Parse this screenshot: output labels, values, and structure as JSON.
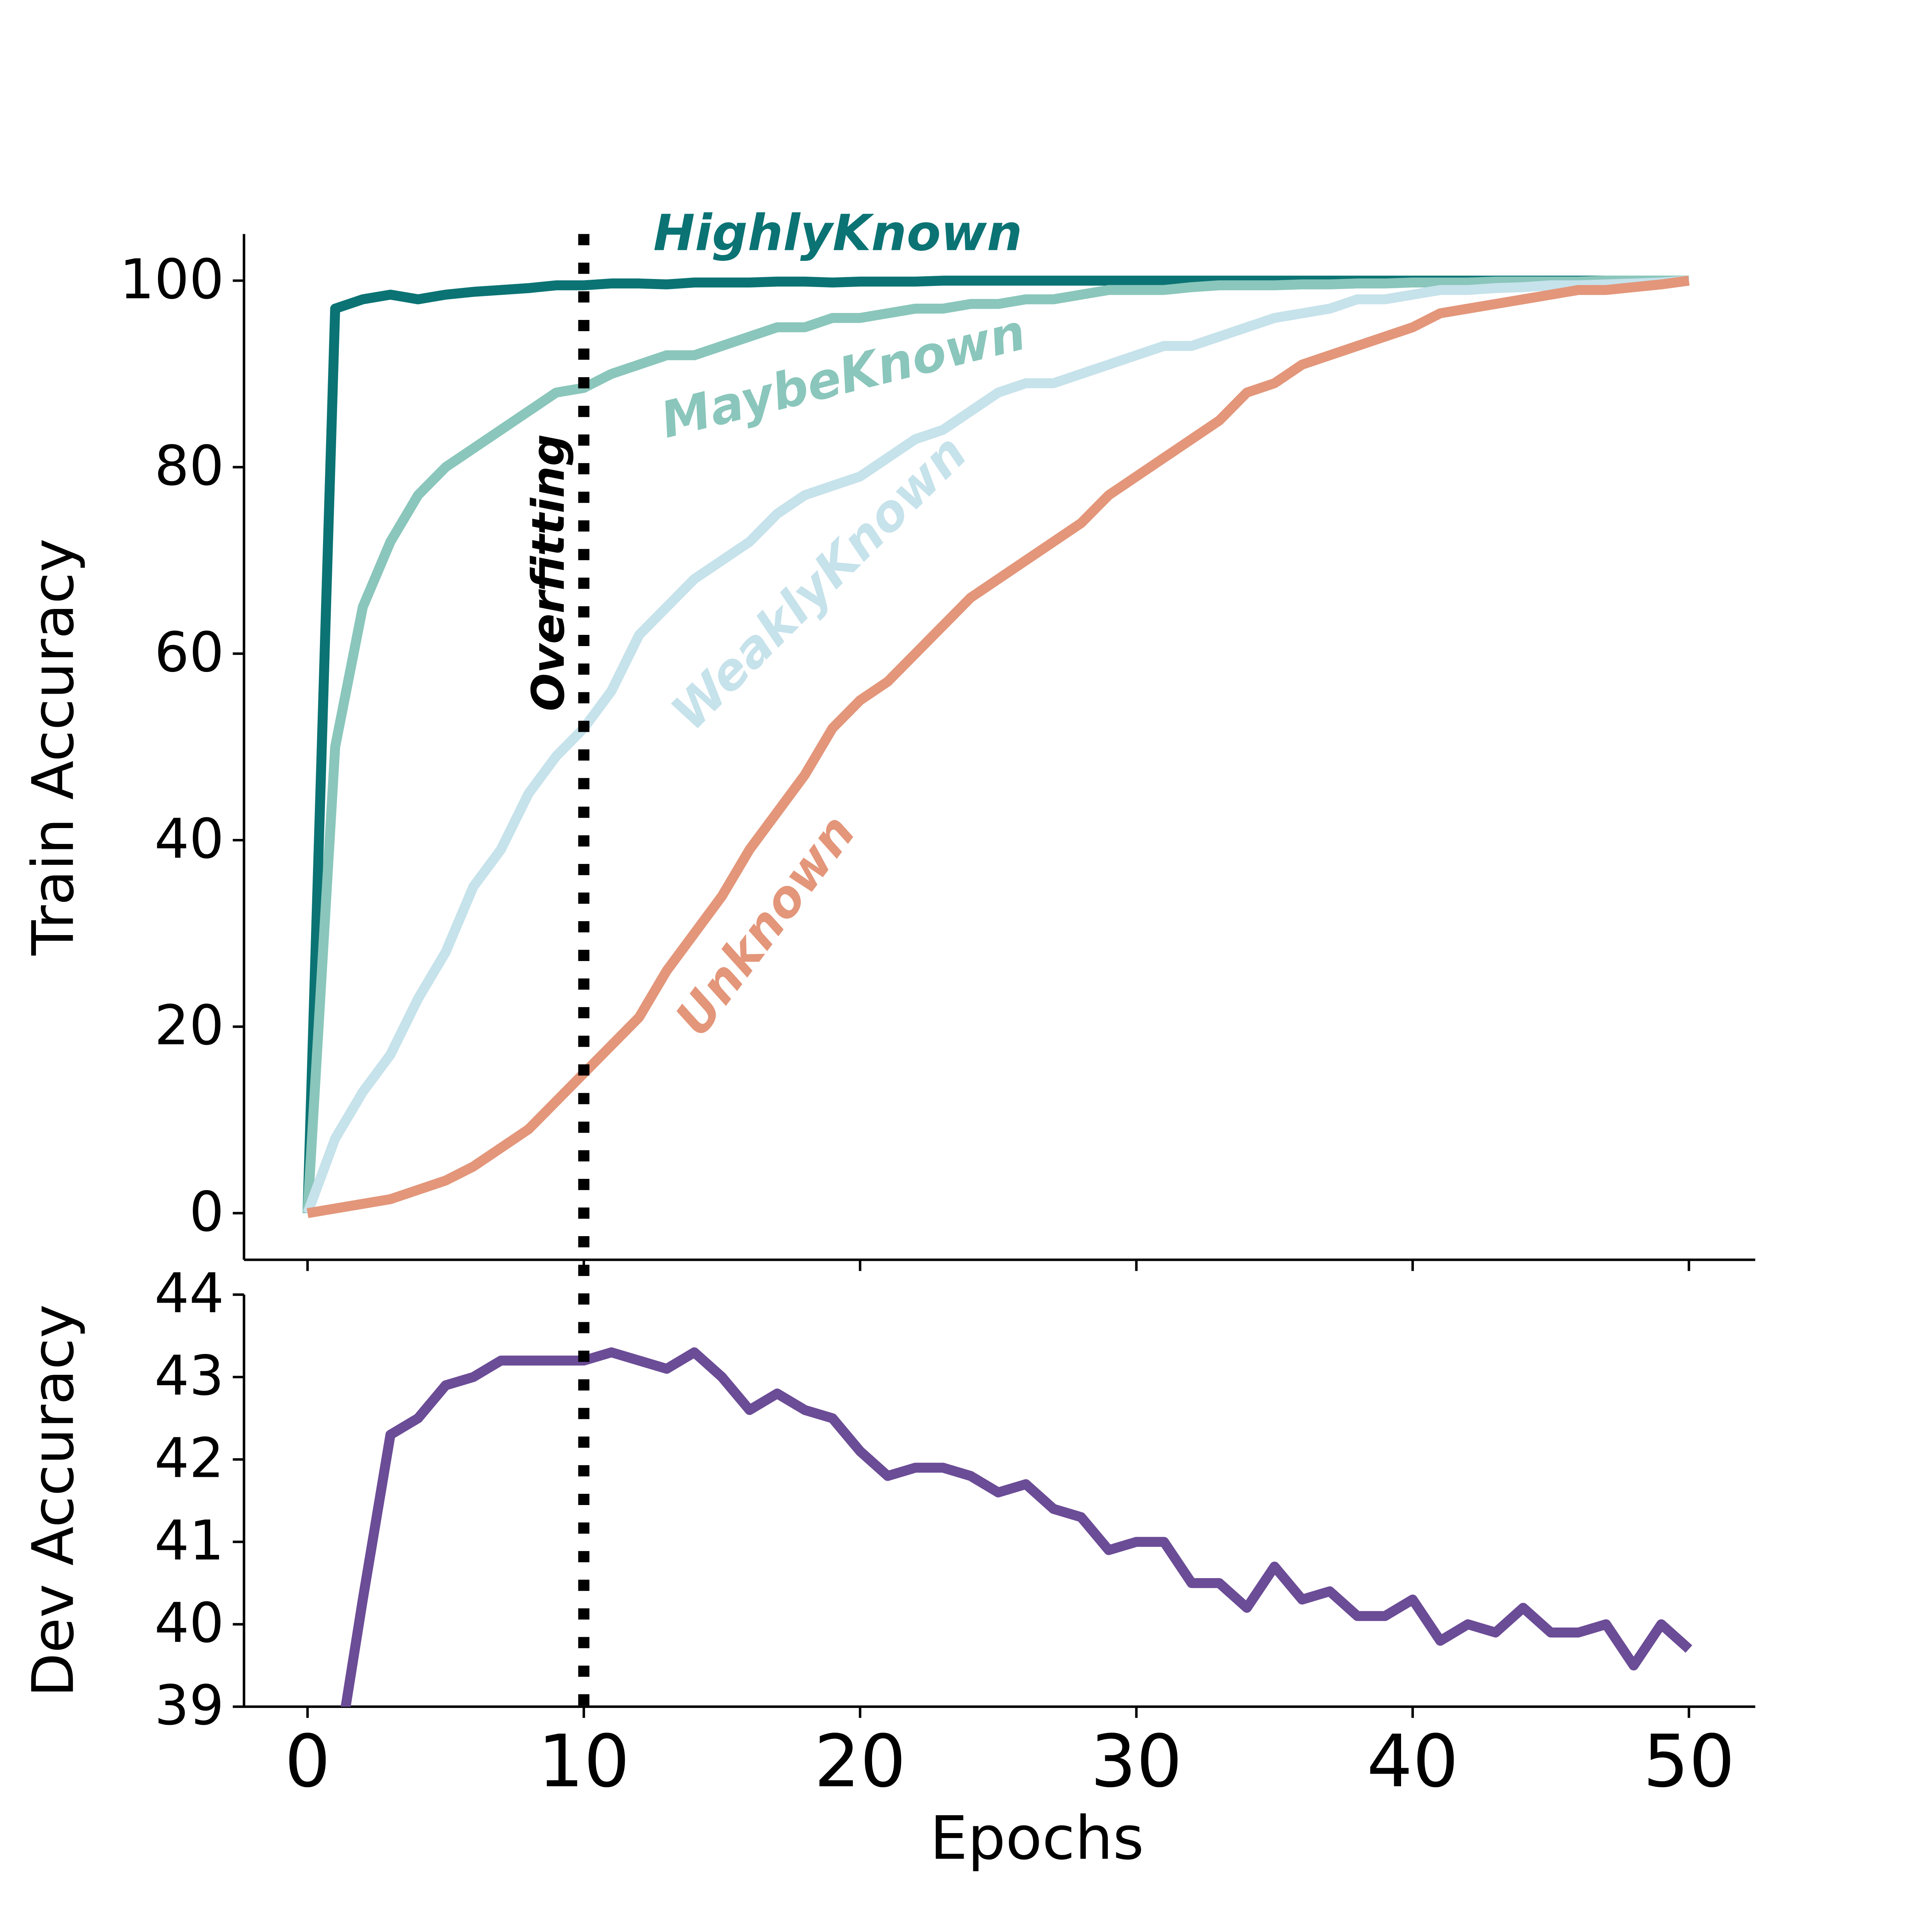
{
  "chart_data": [
    {
      "type": "line",
      "ylabel": "Train Accuracy",
      "x": [
        0,
        1,
        2,
        3,
        4,
        5,
        6,
        7,
        8,
        9,
        10,
        11,
        12,
        13,
        14,
        15,
        16,
        17,
        18,
        19,
        20,
        21,
        22,
        23,
        24,
        25,
        26,
        27,
        28,
        29,
        30,
        31,
        32,
        33,
        34,
        35,
        36,
        37,
        38,
        39,
        40,
        41,
        42,
        43,
        44,
        45,
        46,
        47,
        48,
        49,
        50
      ],
      "xlim": [
        -2.3,
        52.4
      ],
      "xticks": [
        0,
        10,
        20,
        30,
        40,
        50
      ],
      "ylim": [
        -5,
        105
      ],
      "yticks": [
        0,
        20,
        40,
        60,
        80,
        100
      ],
      "vline": {
        "x": 10,
        "label": "Overfitting"
      },
      "series": [
        {
          "name": "HighlyKnown",
          "color": "#0b7374",
          "values": [
            0,
            97,
            98,
            98.5,
            98,
            98.5,
            98.8,
            99,
            99.2,
            99.5,
            99.5,
            99.7,
            99.7,
            99.6,
            99.8,
            99.8,
            99.8,
            99.9,
            99.9,
            99.8,
            99.9,
            99.9,
            99.9,
            100,
            100,
            100,
            100,
            100,
            100,
            100,
            100,
            100,
            100,
            100,
            100,
            100,
            100,
            100,
            100,
            100,
            100,
            100,
            100,
            100,
            100,
            100,
            100,
            100,
            100,
            100,
            100
          ]
        },
        {
          "name": "MaybeKnown",
          "color": "#8ac6bb",
          "values": [
            0,
            50,
            65,
            72,
            77,
            80,
            82,
            84,
            86,
            88,
            88.5,
            90,
            91,
            92,
            92,
            93,
            94,
            95,
            95,
            96,
            96,
            96.5,
            97,
            97,
            97.5,
            97.5,
            98,
            98,
            98.5,
            99,
            99,
            99,
            99.3,
            99.5,
            99.5,
            99.5,
            99.6,
            99.6,
            99.7,
            99.7,
            99.8,
            99.8,
            99.8,
            99.9,
            99.9,
            99.9,
            99.9,
            100,
            100,
            100,
            100
          ]
        },
        {
          "name": "WeaklyKnown",
          "color": "#c6e2eb",
          "values": [
            0,
            8,
            13,
            17,
            23,
            28,
            35,
            39,
            45,
            49,
            52,
            56,
            62,
            65,
            68,
            70,
            72,
            75,
            77,
            78,
            79,
            81,
            83,
            84,
            86,
            88,
            89,
            89,
            90,
            91,
            92,
            93,
            93,
            94,
            95,
            96,
            96.5,
            97,
            98,
            98,
            98.5,
            99,
            99,
            99.2,
            99.3,
            99.5,
            99.5,
            99.6,
            99.7,
            99.8,
            100
          ]
        },
        {
          "name": "Unknown",
          "color": "#e3967a",
          "values": [
            0,
            0.5,
            1,
            1.5,
            2.5,
            3.5,
            5,
            7,
            9,
            12,
            15,
            18,
            21,
            26,
            30,
            34,
            39,
            43,
            47,
            52,
            55,
            57,
            60,
            63,
            66,
            68,
            70,
            72,
            74,
            77,
            79,
            81,
            83,
            85,
            88,
            89,
            91,
            92,
            93,
            94,
            95,
            96.5,
            97,
            97.5,
            98,
            98.5,
            99,
            99,
            99.3,
            99.6,
            100
          ]
        }
      ]
    },
    {
      "type": "line",
      "xlabel": "Epochs",
      "ylabel": "Dev Accuracy",
      "x": [
        0,
        1,
        2,
        3,
        4,
        5,
        6,
        7,
        8,
        9,
        10,
        11,
        12,
        13,
        14,
        15,
        16,
        17,
        18,
        19,
        20,
        21,
        22,
        23,
        24,
        25,
        26,
        27,
        28,
        29,
        30,
        31,
        32,
        33,
        34,
        35,
        36,
        37,
        38,
        39,
        40,
        41,
        42,
        43,
        44,
        45,
        46,
        47,
        48,
        49,
        50
      ],
      "xlim": [
        -2.3,
        52.4
      ],
      "xticks": [
        0,
        10,
        20,
        30,
        40,
        50
      ],
      "ylim": [
        39,
        44
      ],
      "yticks": [
        39,
        40,
        41,
        42,
        43,
        44
      ],
      "series": [
        {
          "color": "#6b4c96",
          "values": [
            null,
            38.2,
            40.3,
            42.3,
            42.5,
            42.9,
            43.0,
            43.2,
            43.2,
            43.2,
            43.2,
            43.3,
            43.2,
            43.1,
            43.3,
            43.0,
            42.6,
            42.8,
            42.6,
            42.5,
            42.1,
            41.8,
            41.9,
            41.9,
            41.8,
            41.6,
            41.7,
            41.4,
            41.3,
            40.9,
            41.0,
            41.0,
            40.5,
            40.5,
            40.2,
            40.7,
            40.3,
            40.4,
            40.1,
            40.1,
            40.3,
            39.8,
            40.0,
            39.9,
            40.2,
            39.9,
            39.9,
            40.0,
            39.5,
            40.0,
            39.7
          ]
        }
      ]
    }
  ]
}
